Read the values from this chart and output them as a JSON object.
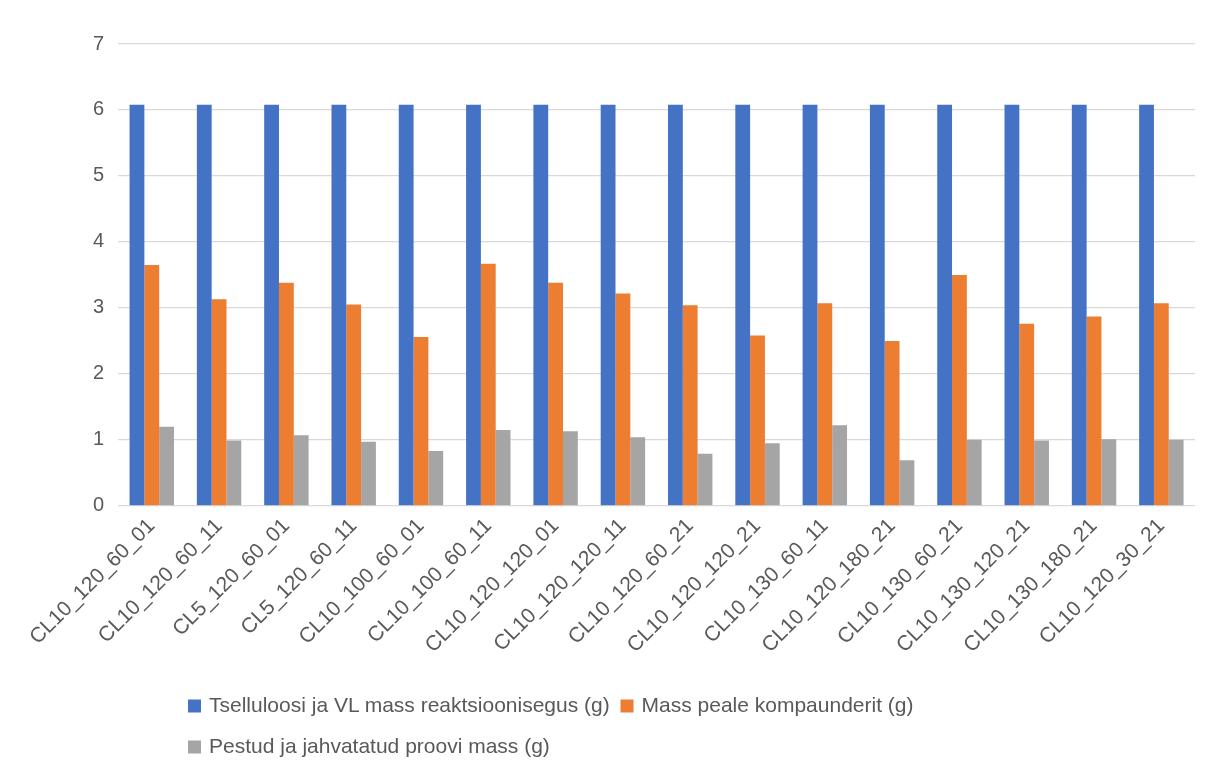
{
  "chart_data": {
    "type": "bar",
    "categories": [
      "CL10_120_60_01",
      "CL10_120_60_11",
      "CL5_120_60_01",
      "CL5_120_60_11",
      "CL10_100_60_01",
      "CL10_100_60_11",
      "CL10_120_120_01",
      "CL10_120_120_11",
      "CL10_120_60_21",
      "CL10_120_120_21",
      "CL10_130_60_11",
      "CL10_120_180_21",
      "CL10_130_60_21",
      "CL10_130_120_21",
      "CL10_130_180_21",
      "CL10_120_30_21"
    ],
    "series": [
      {
        "name": "Tselluloosi ja VL mass reaktsioonisegus (g)",
        "color": "#4472c4",
        "values": [
          6.08,
          6.08,
          6.08,
          6.08,
          6.08,
          6.08,
          6.08,
          6.08,
          6.08,
          6.08,
          6.08,
          6.08,
          6.08,
          6.08,
          6.08,
          6.08
        ]
      },
      {
        "name": "Mass peale kompaunderit (g)",
        "color": "#ed7d31",
        "values": [
          3.65,
          3.13,
          3.38,
          3.05,
          2.56,
          3.67,
          3.38,
          3.22,
          3.04,
          2.58,
          3.07,
          2.5,
          3.5,
          2.76,
          2.87,
          3.07
        ]
      },
      {
        "name": "Pestud ja jahvatatud proovi mass (g)",
        "color": "#a5a5a5",
        "values": [
          1.2,
          0.99,
          1.07,
          0.97,
          0.83,
          1.15,
          1.13,
          1.04,
          0.79,
          0.95,
          1.22,
          0.69,
          1.0,
          0.99,
          1.01,
          1.0
        ]
      }
    ],
    "ylim": [
      0,
      7
    ],
    "yticks": [
      0,
      1,
      2,
      3,
      4,
      5,
      6,
      7
    ],
    "grid": "y",
    "legend": "bottom"
  }
}
